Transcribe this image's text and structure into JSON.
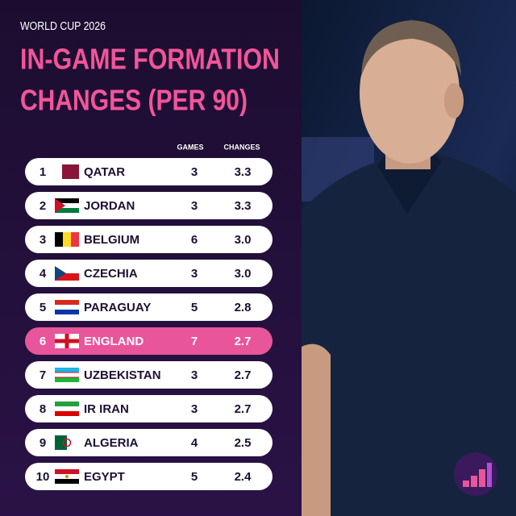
{
  "header": {
    "kicker": "WORLD CUP 2026",
    "title_lines": [
      "IN-GAME FORMATION",
      "CHANGES (PER 90)"
    ]
  },
  "table": {
    "columns": [
      "GAMES",
      "CHANGES"
    ],
    "rows": [
      {
        "rank": "1",
        "country": "QATAR",
        "games": "3",
        "changes": "3.3"
      },
      {
        "rank": "2",
        "country": "JORDAN",
        "games": "3",
        "changes": "3.3"
      },
      {
        "rank": "3",
        "country": "BELGIUM",
        "games": "6",
        "changes": "3.0"
      },
      {
        "rank": "4",
        "country": "CZECHIA",
        "games": "3",
        "changes": "3.0"
      },
      {
        "rank": "5",
        "country": "PARAGUAY",
        "games": "5",
        "changes": "2.8"
      },
      {
        "rank": "6",
        "country": "ENGLAND",
        "games": "7",
        "changes": "2.7",
        "highlighted": true
      },
      {
        "rank": "7",
        "country": "UZBEKISTAN",
        "games": "3",
        "changes": "2.7"
      },
      {
        "rank": "8",
        "country": "IR IRAN",
        "games": "3",
        "changes": "2.7"
      },
      {
        "rank": "9",
        "country": "ALGERIA",
        "games": "4",
        "changes": "2.5"
      },
      {
        "rank": "10",
        "country": "EGYPT",
        "games": "5",
        "changes": "2.4"
      }
    ]
  }
}
